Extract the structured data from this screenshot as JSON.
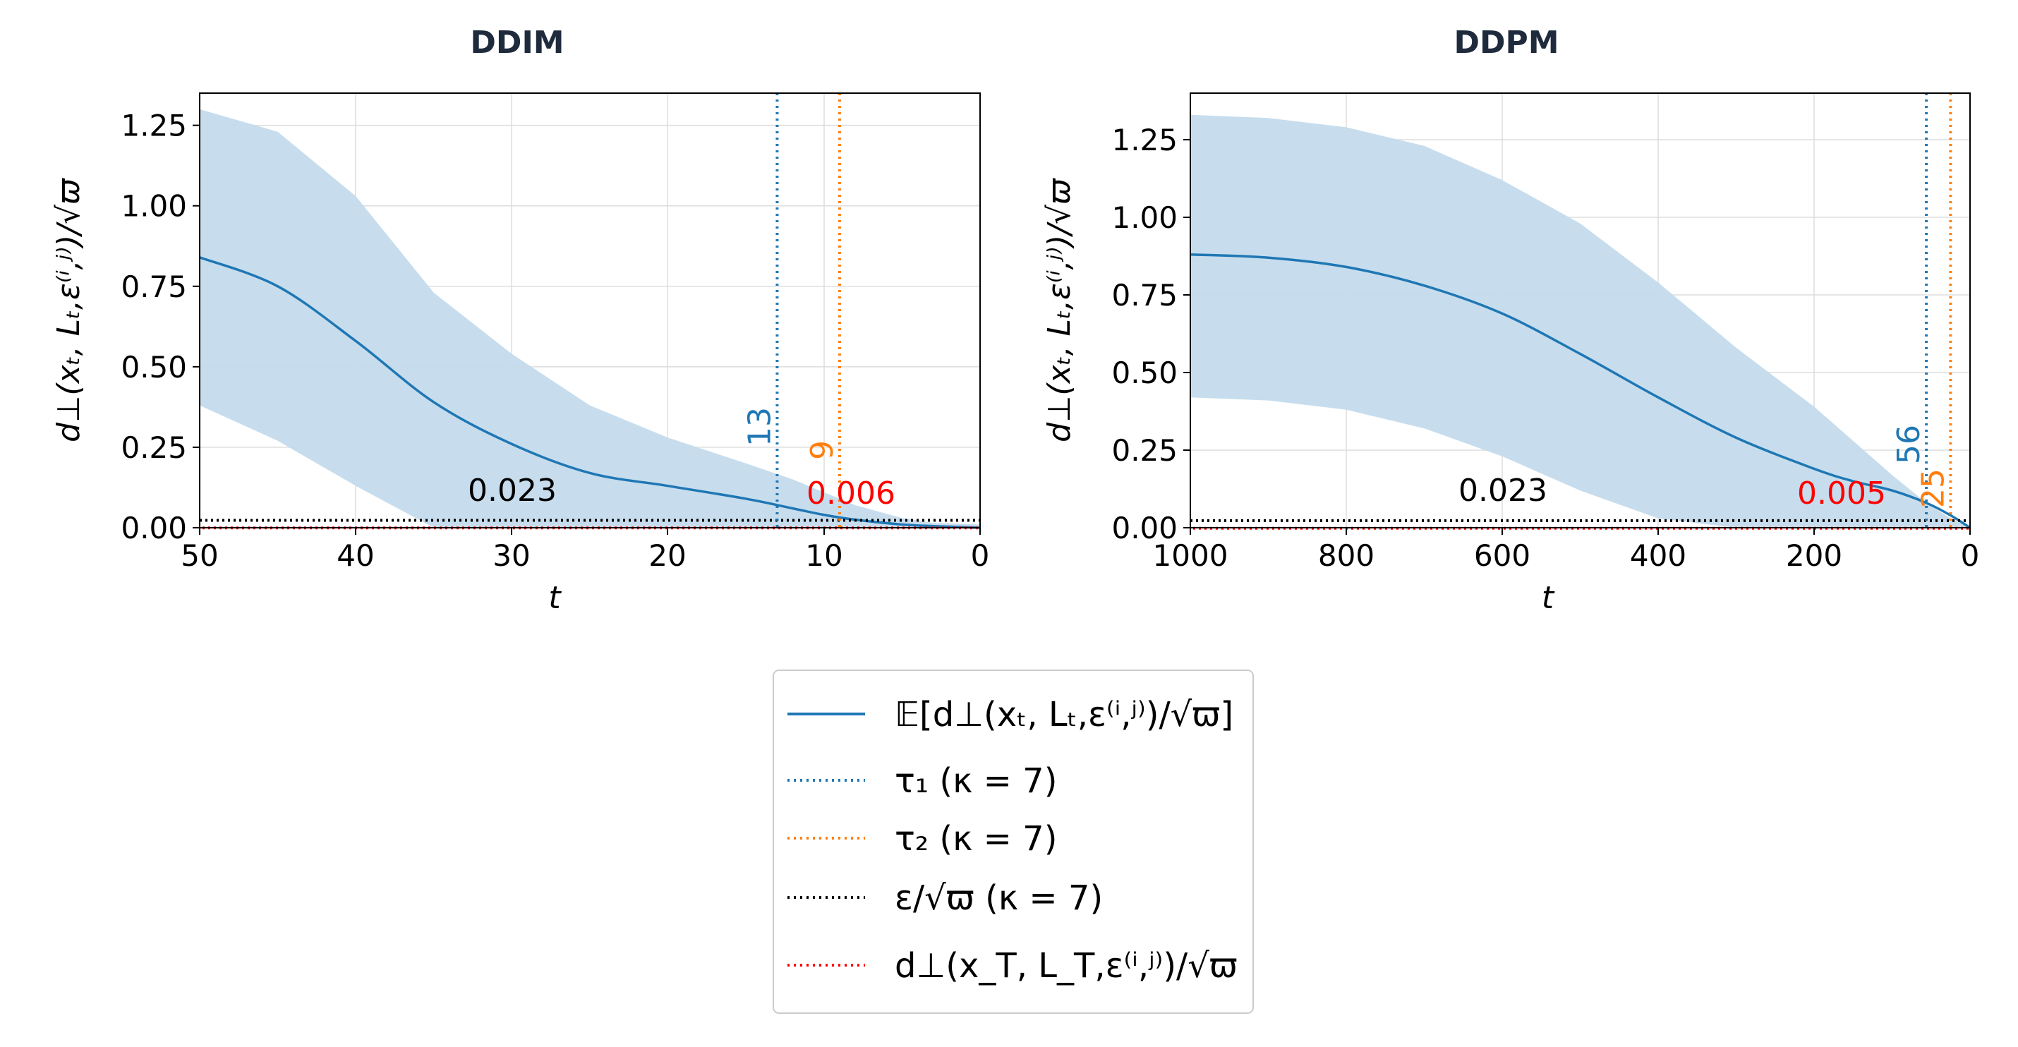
{
  "colors": {
    "mean": "#1f77b4",
    "band": "#c4dbec",
    "tau1": "#1f77b4",
    "tau2": "#ff7f0e",
    "eps": "#000000",
    "dT": "#ff0000",
    "grid": "#dddddd",
    "title": "#1f2b3d"
  },
  "chart_data": [
    {
      "type": "line",
      "title": "DDIM",
      "xlabel": "t",
      "ylabel": "d⊥(xₜ, Lₜ,ε⁽ⁱ,ʲ⁾)/√ϖ",
      "xlim": [
        50,
        0
      ],
      "ylim": [
        0,
        1.35
      ],
      "x_reversed": true,
      "xticks": [
        "50",
        "40",
        "30",
        "20",
        "10",
        "0"
      ],
      "yticks": [
        "0.00",
        "0.25",
        "0.50",
        "0.75",
        "1.00",
        "1.25"
      ],
      "grid": true,
      "x": [
        50,
        45,
        40,
        35,
        30,
        25,
        20,
        15,
        12,
        10,
        8,
        5,
        3,
        0
      ],
      "mean": [
        0.84,
        0.75,
        0.58,
        0.39,
        0.26,
        0.17,
        0.13,
        0.09,
        0.06,
        0.04,
        0.025,
        0.01,
        0.005,
        0.0
      ],
      "upper": [
        1.3,
        1.23,
        1.03,
        0.73,
        0.54,
        0.38,
        0.28,
        0.2,
        0.15,
        0.11,
        0.07,
        0.03,
        0.015,
        0.01
      ],
      "lower": [
        0.38,
        0.27,
        0.13,
        0.0,
        0.0,
        0.0,
        0.0,
        0.0,
        0.0,
        0.0,
        0.0,
        0.0,
        0.0,
        0.0
      ],
      "tau1": 13,
      "tau2": 9,
      "tau1_label": "13",
      "tau2_label": "9",
      "eps_value": 0.023,
      "eps_label": "0.023",
      "dT_value": 0.006,
      "dT_label": "0.006"
    },
    {
      "type": "line",
      "title": "DDPM",
      "xlabel": "t",
      "ylabel": "d⊥(xₜ, Lₜ,ε⁽ⁱ,ʲ⁾)/√ϖ",
      "xlim": [
        1000,
        0
      ],
      "ylim": [
        0,
        1.4
      ],
      "x_reversed": true,
      "xticks": [
        "1000",
        "800",
        "600",
        "400",
        "200",
        "0"
      ],
      "yticks": [
        "0.00",
        "0.25",
        "0.50",
        "0.75",
        "1.00",
        "1.25"
      ],
      "grid": true,
      "x": [
        1000,
        900,
        800,
        700,
        600,
        500,
        400,
        300,
        200,
        150,
        100,
        56,
        25,
        0
      ],
      "mean": [
        0.88,
        0.87,
        0.84,
        0.78,
        0.69,
        0.56,
        0.42,
        0.29,
        0.19,
        0.15,
        0.12,
        0.08,
        0.04,
        0.0
      ],
      "upper": [
        1.33,
        1.32,
        1.29,
        1.23,
        1.12,
        0.98,
        0.79,
        0.58,
        0.39,
        0.28,
        0.17,
        0.08,
        0.03,
        0.0
      ],
      "lower": [
        0.42,
        0.41,
        0.38,
        0.32,
        0.23,
        0.12,
        0.03,
        0.0,
        0.0,
        0.0,
        0.0,
        0.0,
        0.0,
        0.0
      ],
      "tau1": 56,
      "tau2": 25,
      "tau1_label": "56",
      "tau2_label": "25",
      "eps_value": 0.023,
      "eps_label": "0.023",
      "dT_value": 0.005,
      "dT_label": "0.005"
    }
  ],
  "legend": {
    "placement": "bottom-center",
    "items": [
      {
        "key": "mean",
        "label": "𝔼[d⊥(xₜ, Lₜ,ε⁽ⁱ,ʲ⁾)/√ϖ]",
        "style": "solid"
      },
      {
        "key": "tau1",
        "label": "τ₁ (κ = 7)",
        "style": "dotted"
      },
      {
        "key": "tau2",
        "label": "τ₂ (κ = 7)",
        "style": "dotted"
      },
      {
        "key": "eps",
        "label": "ε/√ϖ (κ = 7)",
        "style": "dotted"
      },
      {
        "key": "dT",
        "label": "d⊥(x_T, L_T,ε⁽ⁱ,ʲ⁾)/√ϖ",
        "style": "dotted"
      }
    ]
  }
}
